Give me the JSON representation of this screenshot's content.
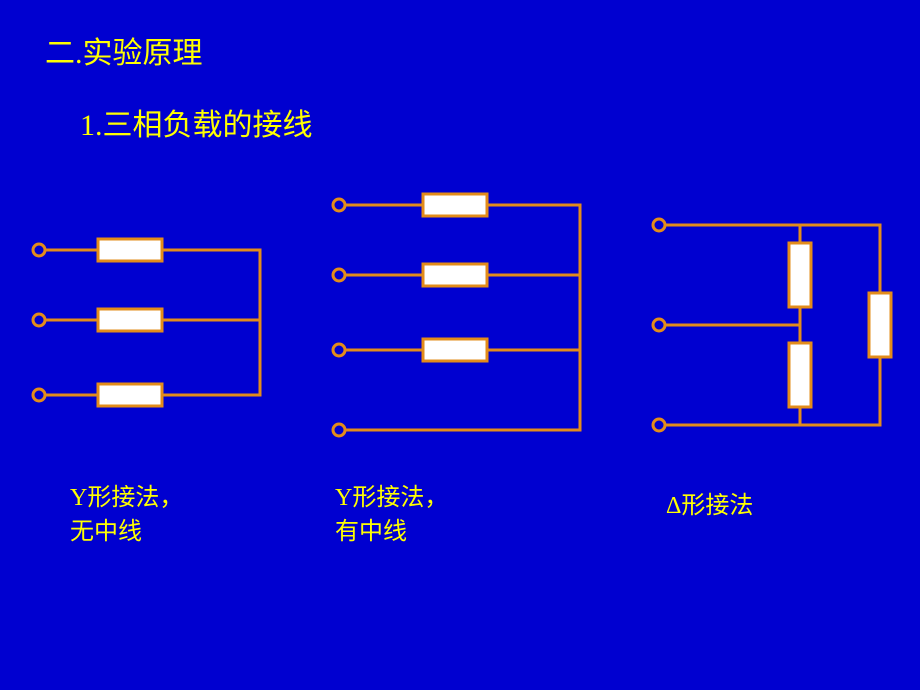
{
  "heading_section": "二.实验原理",
  "heading_sub": "1.三相负载的接线",
  "diagrams": {
    "y_no_neutral": {
      "caption": "Y形接法，\n无中线"
    },
    "y_with_neutral": {
      "caption": "Y形接法，\n有中线"
    },
    "delta": {
      "caption": "Δ形接法"
    }
  },
  "style": {
    "background_color": "#0000d0",
    "text_color": "#ffff00",
    "wire_color": "#e38c1a",
    "resistor_fill": "#ffffff",
    "wire_width": 3,
    "terminal_radius": 6,
    "terminal_stroke": 3,
    "resistor_w": 64,
    "resistor_h": 22,
    "heading_fontsize": 30,
    "caption_fontsize": 24
  }
}
